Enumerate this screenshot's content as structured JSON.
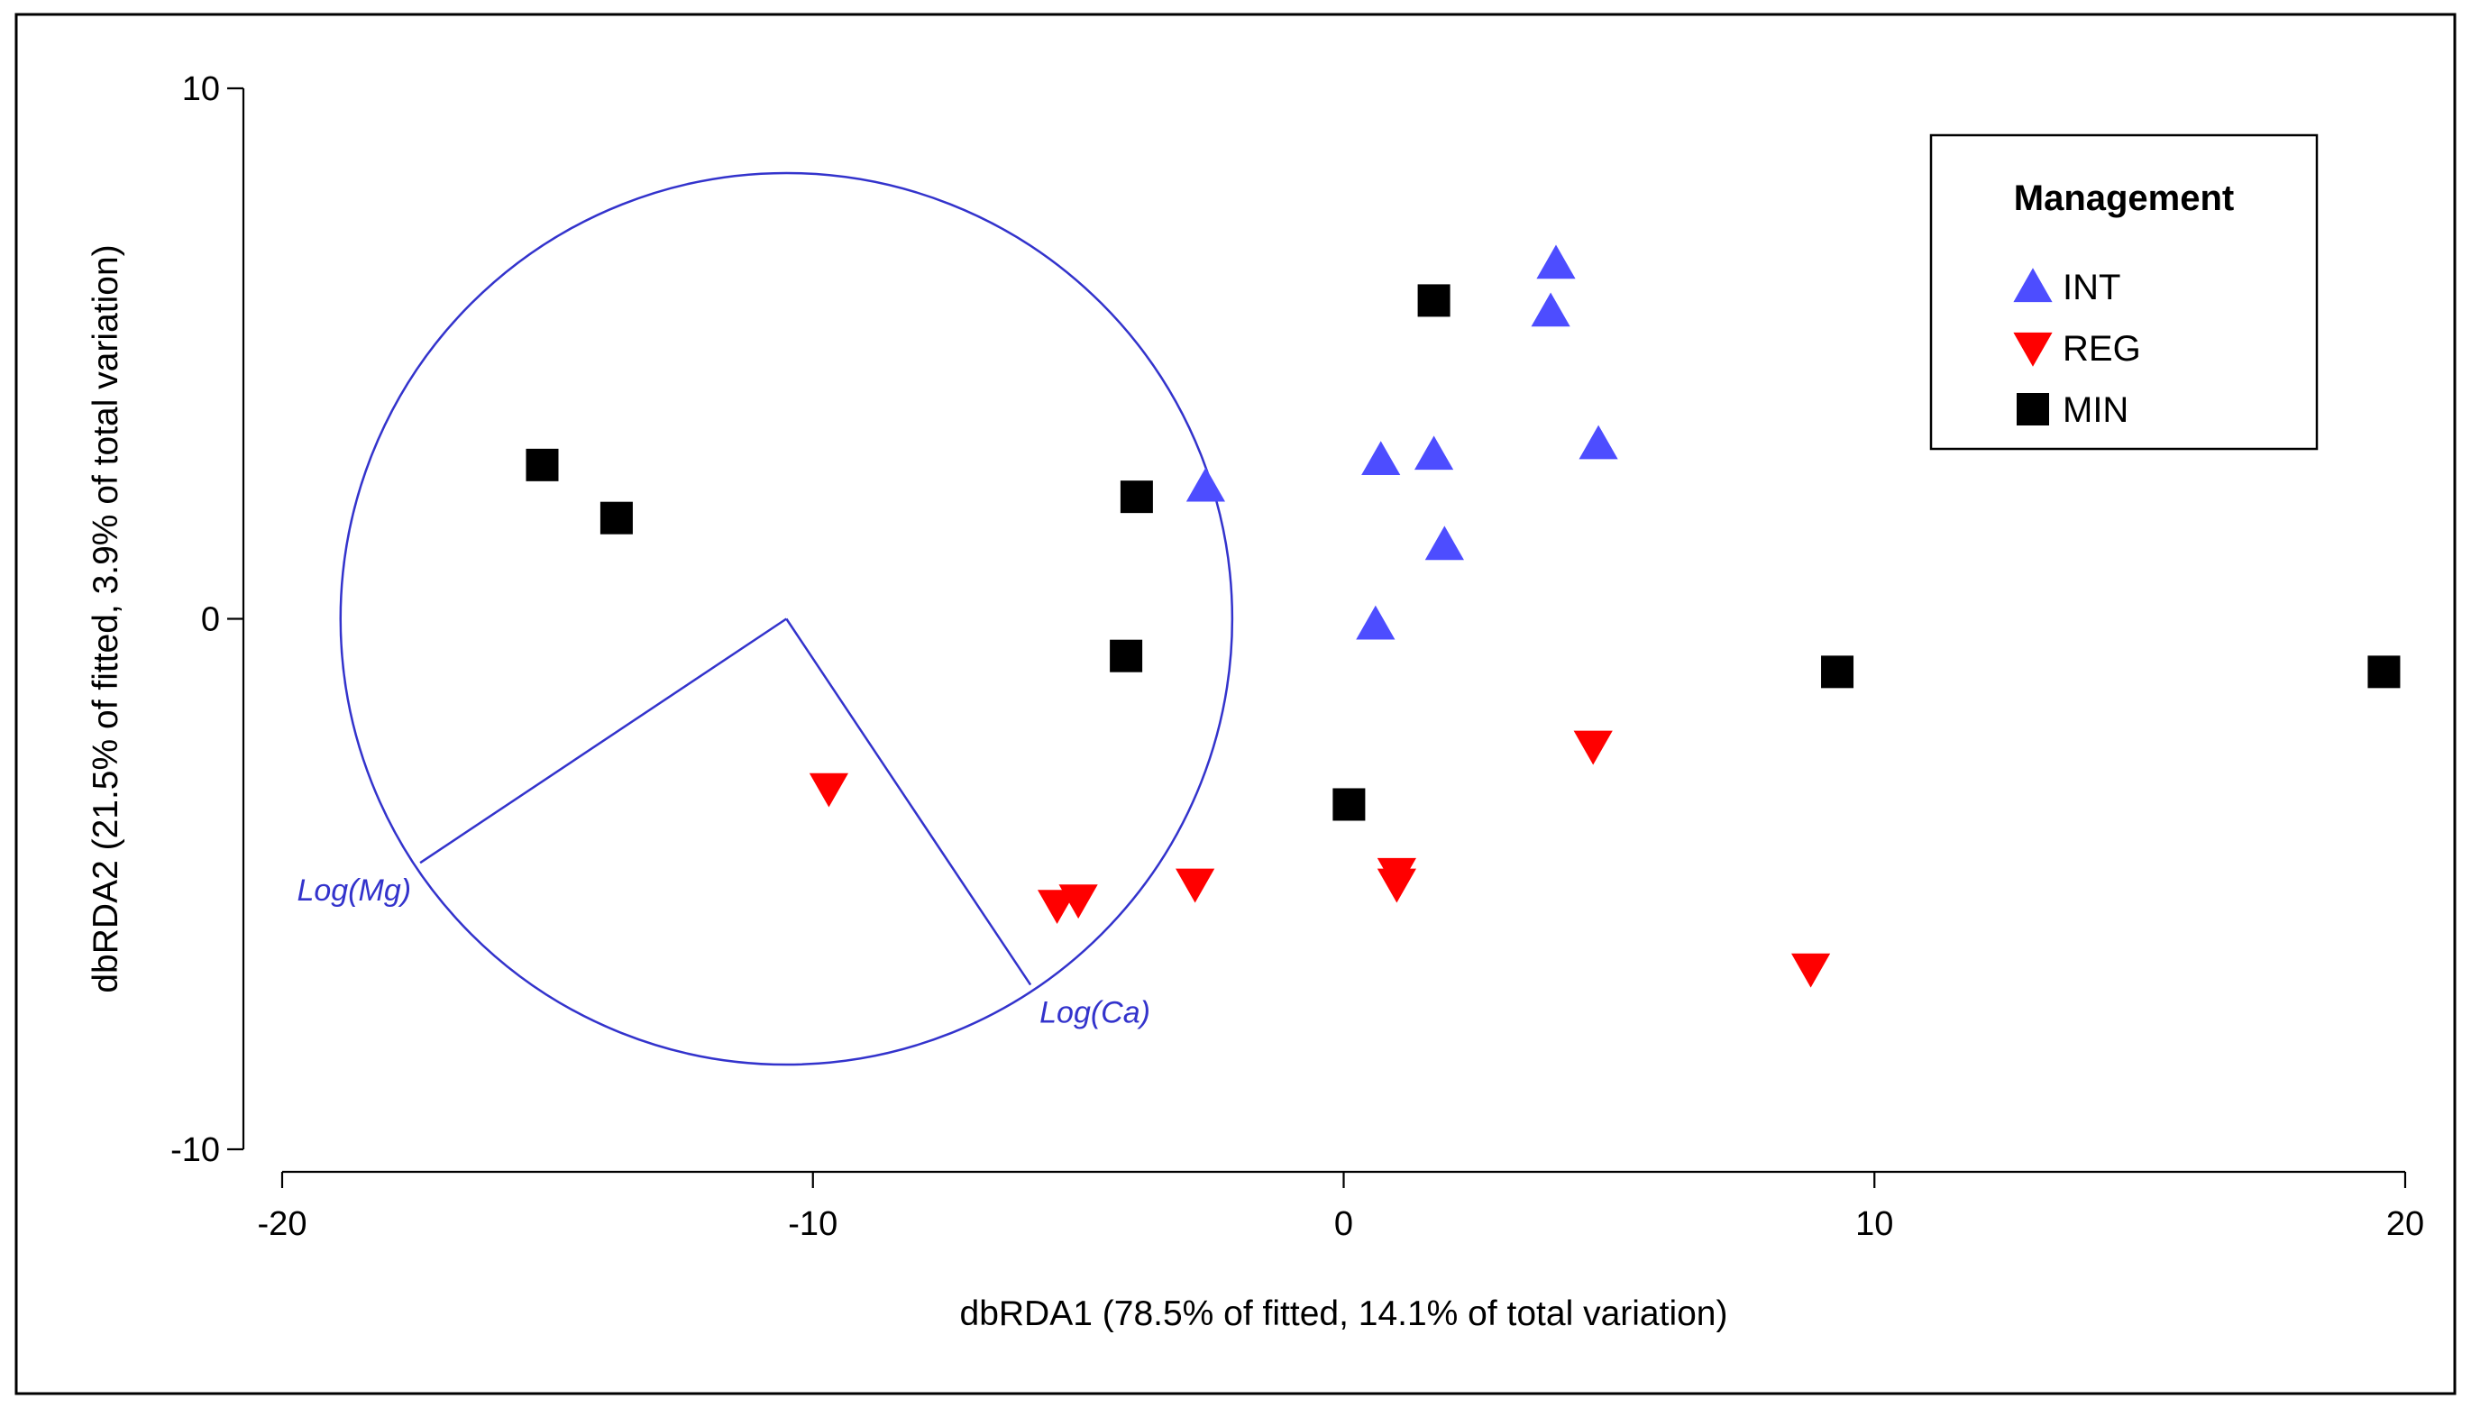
{
  "chart_data": {
    "type": "scatter",
    "xlabel": "dbRDA1 (78.5% of fitted, 14.1% of total variation)",
    "ylabel": "dbRDA2 (21.5% of fitted, 3.9% of total variation)",
    "xlim": [
      -20,
      20
    ],
    "ylim": [
      -10,
      10
    ],
    "xticks": [
      -20,
      -10,
      0,
      10,
      20
    ],
    "yticks": [
      10,
      0,
      -10
    ],
    "grid": false,
    "legend": {
      "title": "Management",
      "position": "top-right",
      "entries": [
        {
          "label": "INT",
          "marker": "triangle-up",
          "color": "#4d4dff"
        },
        {
          "label": "REG",
          "marker": "triangle-down",
          "color": "#ff0000"
        },
        {
          "label": "MIN",
          "marker": "square",
          "color": "#000000"
        }
      ]
    },
    "series": [
      {
        "name": "INT",
        "marker": "triangle-up",
        "color": "#4d4dff",
        "points": [
          {
            "x": -2.6,
            "y": 2.5
          },
          {
            "x": 0.7,
            "y": 3.0
          },
          {
            "x": 1.7,
            "y": 3.1
          },
          {
            "x": 1.9,
            "y": 1.4
          },
          {
            "x": 0.6,
            "y": -0.1
          },
          {
            "x": 3.9,
            "y": 5.8
          },
          {
            "x": 4.0,
            "y": 6.7
          },
          {
            "x": 4.8,
            "y": 3.3
          }
        ]
      },
      {
        "name": "REG",
        "marker": "triangle-down",
        "color": "#ff0000",
        "points": [
          {
            "x": -9.7,
            "y": -3.2
          },
          {
            "x": -5.4,
            "y": -5.4
          },
          {
            "x": -5.0,
            "y": -5.3
          },
          {
            "x": -2.8,
            "y": -5.0
          },
          {
            "x": 1.0,
            "y": -4.8
          },
          {
            "x": 1.0,
            "y": -5.0
          },
          {
            "x": 4.7,
            "y": -2.4
          },
          {
            "x": 8.8,
            "y": -6.6
          }
        ]
      },
      {
        "name": "MIN",
        "marker": "square",
        "color": "#000000",
        "points": [
          {
            "x": -15.1,
            "y": 2.9
          },
          {
            "x": -13.7,
            "y": 1.9
          },
          {
            "x": -3.9,
            "y": 2.3
          },
          {
            "x": -4.1,
            "y": -0.7
          },
          {
            "x": 0.1,
            "y": -3.5
          },
          {
            "x": 1.7,
            "y": 6.0
          },
          {
            "x": 9.3,
            "y": -1.0
          },
          {
            "x": 19.6,
            "y": -1.0
          }
        ]
      }
    ],
    "vector_overlay": {
      "color": "#3333cc",
      "center": {
        "x": -10.5,
        "y": 0
      },
      "radius_x_units": 8.4,
      "vectors": [
        {
          "label": "Log(Mg)",
          "x_end": -17.4,
          "y_end": -4.6
        },
        {
          "label": "Log(Ca)",
          "x_end": -5.9,
          "y_end": -6.9
        }
      ]
    }
  }
}
